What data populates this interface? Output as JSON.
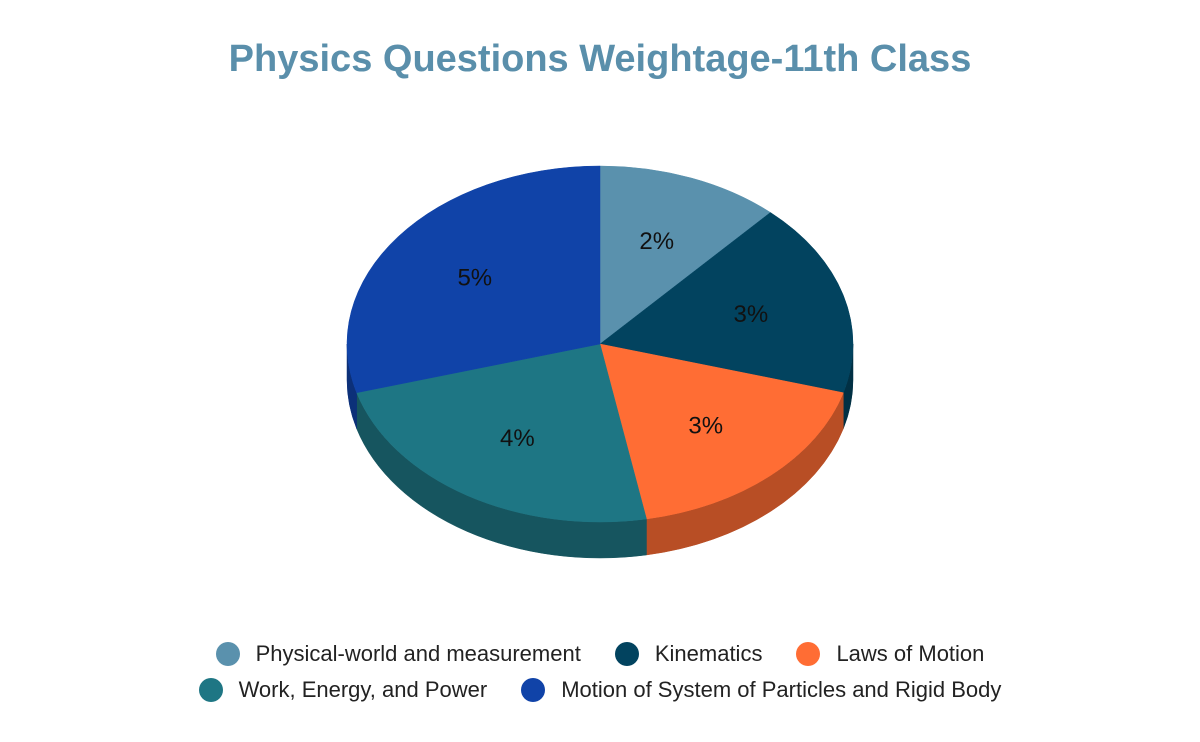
{
  "chart_data": {
    "type": "pie",
    "title": "Physics Questions Weightage-11th Class",
    "title_color": "#5a8fab",
    "slices": [
      {
        "label": "Physical-world and measurement",
        "value": 2,
        "display": "2%",
        "color": "#5a91ad"
      },
      {
        "label": "Kinematics",
        "value": 3,
        "display": "3%",
        "color": "#02435f"
      },
      {
        "label": "Laws of Motion",
        "value": 3,
        "display": "3%",
        "color": "#ff6d34"
      },
      {
        "label": "Work, Energy, and Power",
        "value": 4,
        "display": "4%",
        "color": "#1e7684"
      },
      {
        "label": "Motion of System of Particles and Rigid Body",
        "value": 5,
        "display": "5%",
        "color": "#1043a8"
      }
    ],
    "legend_position": "bottom",
    "three_d": true
  }
}
